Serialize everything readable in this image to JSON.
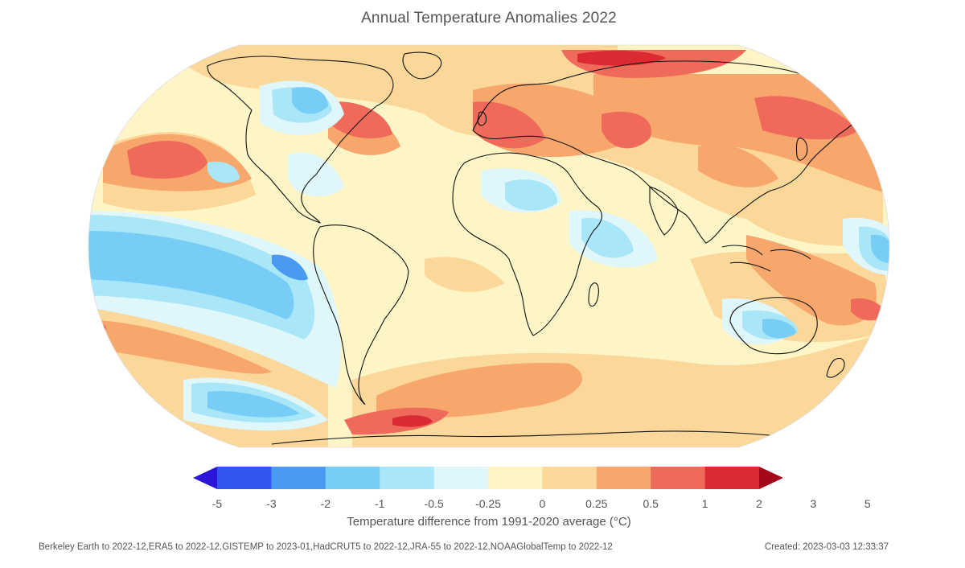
{
  "title": "Annual Temperature Anomalies 2022",
  "colors": {
    "ocean_base": "#fdf5c5",
    "land_outline": "#111111"
  },
  "legend": {
    "label": "Temperature difference from 1991-2020 average (°C)",
    "ticks": [
      "-5",
      "-3",
      "-2",
      "-1",
      "-0.5",
      "-0.25",
      "0",
      "0.25",
      "0.5",
      "1",
      "2",
      "3",
      "5"
    ],
    "bins": [
      {
        "from": "-5",
        "to": "-3",
        "color": "#2b15d9"
      },
      {
        "from": "-3",
        "to": "-2",
        "color": "#3356f0"
      },
      {
        "from": "-2",
        "to": "-1",
        "color": "#4a9af2"
      },
      {
        "from": "-1",
        "to": "-0.5",
        "color": "#78cdf6"
      },
      {
        "from": "-0.5",
        "to": "-0.25",
        "color": "#a9e6f7"
      },
      {
        "from": "-0.25",
        "to": "0",
        "color": "#dff6fa"
      },
      {
        "from": "0",
        "to": "0.25",
        "color": "#fdf5c5"
      },
      {
        "from": "0.25",
        "to": "0.5",
        "color": "#fbd79a"
      },
      {
        "from": "0.5",
        "to": "1",
        "color": "#f7a76c"
      },
      {
        "from": "1",
        "to": "2",
        "color": "#ef6a5a"
      },
      {
        "from": "2",
        "to": "3",
        "color": "#dc2a33"
      },
      {
        "from": "3",
        "to": "5",
        "color": "#a4061c"
      }
    ]
  },
  "footer": {
    "sources": "Berkeley Earth to 2022-12,ERA5 to 2022-12,GISTEMP to 2023-01,HadCRUT5 to 2022-12,JRA-55 to 2022-12,NOAAGlobalTemp to 2022-12",
    "created": "Created: 2023-03-03 12:33:37"
  }
}
